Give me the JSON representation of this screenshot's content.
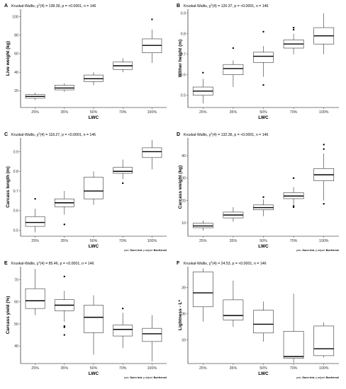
{
  "pwc_note": {
    "prefix": "pwc: ",
    "test": "Dunn test",
    "mid": "; p.adjust: ",
    "method": "Bonferroni"
  },
  "chart_data": [
    {
      "type": "boxplot",
      "panel": "A",
      "stat_prefix": "Kruskal-Wallis, χ",
      "stat_sup": "2",
      "stat_rest": "(4) = 138.39, p = <0.0001, n = 146",
      "xlabel": "LWC",
      "ylabel": "Live weight (kg)",
      "categories": [
        "25%",
        "35%",
        "50%",
        "70%",
        "100%"
      ],
      "ylim": [
        2,
        108
      ],
      "yticks": [
        20,
        40,
        60,
        80,
        100
      ],
      "show_pwc": false,
      "boxes": [
        {
          "whislo": 10,
          "q1": 12,
          "med": 14,
          "q3": 16,
          "whishi": 18,
          "outliers": []
        },
        {
          "whislo": 19,
          "q1": 21,
          "med": 23,
          "q3": 26,
          "whishi": 28,
          "outliers": []
        },
        {
          "whislo": 26,
          "q1": 30,
          "med": 33,
          "q3": 37,
          "whishi": 40,
          "outliers": []
        },
        {
          "whislo": 40,
          "q1": 43,
          "med": 47,
          "q3": 51,
          "whishi": 55,
          "outliers": []
        },
        {
          "whislo": 50,
          "q1": 61,
          "med": 69,
          "q3": 76,
          "whishi": 86,
          "outliers": [
            97
          ]
        }
      ]
    },
    {
      "type": "boxplot",
      "panel": "B",
      "stat_prefix": "Kruskal-Wallis, χ",
      "stat_sup": "2",
      "stat_rest": "(4) = 120.37, p = <0.0001, n = 146",
      "xlabel": "LWC",
      "ylabel": "Wither height (m)",
      "categories": [
        "25%",
        "35%",
        "50%",
        "70%",
        "100%"
      ],
      "ylim": [
        0.44,
        0.92
      ],
      "yticks": [
        0.5,
        0.6,
        0.7,
        0.8,
        0.9
      ],
      "show_pwc": false,
      "boxes": [
        {
          "whislo": 0.46,
          "q1": 0.5,
          "med": 0.52,
          "q3": 0.54,
          "whishi": 0.58,
          "outliers": [
            0.61
          ]
        },
        {
          "whislo": 0.54,
          "q1": 0.6,
          "med": 0.63,
          "q3": 0.65,
          "whishi": 0.67,
          "outliers": [
            0.73
          ]
        },
        {
          "whislo": 0.59,
          "q1": 0.66,
          "med": 0.69,
          "q3": 0.71,
          "whishi": 0.74,
          "outliers": [
            0.81,
            0.55
          ]
        },
        {
          "whislo": 0.7,
          "q1": 0.73,
          "med": 0.75,
          "q3": 0.77,
          "whishi": 0.8,
          "outliers": [
            0.82,
            0.83
          ]
        },
        {
          "whislo": 0.7,
          "q1": 0.75,
          "med": 0.79,
          "q3": 0.83,
          "whishi": 0.9,
          "outliers": []
        }
      ]
    },
    {
      "type": "boxplot",
      "panel": "C",
      "stat_prefix": "Kruskal-Wallis, χ",
      "stat_sup": "2",
      "stat_rest": "(4) = 118.27, p = <0.0001, n = 146",
      "xlabel": "LWC",
      "ylabel": "Carcass length (m)",
      "categories": [
        "25%",
        "35%",
        "50%",
        "70%",
        "100%"
      ],
      "ylim": [
        0.47,
        0.97
      ],
      "yticks": [
        0.5,
        0.6,
        0.7,
        0.8,
        0.9
      ],
      "show_pwc": true,
      "boxes": [
        {
          "whislo": 0.49,
          "q1": 0.52,
          "med": 0.54,
          "q3": 0.57,
          "whishi": 0.61,
          "outliers": [
            0.66
          ]
        },
        {
          "whislo": 0.58,
          "q1": 0.62,
          "med": 0.64,
          "q3": 0.66,
          "whishi": 0.7,
          "outliers": [
            0.53
          ]
        },
        {
          "whislo": 0.63,
          "q1": 0.66,
          "med": 0.7,
          "q3": 0.77,
          "whishi": 0.8,
          "outliers": []
        },
        {
          "whislo": 0.76,
          "q1": 0.79,
          "med": 0.8,
          "q3": 0.82,
          "whishi": 0.86,
          "outliers": [
            0.74
          ]
        },
        {
          "whislo": 0.81,
          "q1": 0.87,
          "med": 0.9,
          "q3": 0.92,
          "whishi": 0.96,
          "outliers": []
        }
      ]
    },
    {
      "type": "boxplot",
      "panel": "D",
      "stat_prefix": "Kruskal-Wallis, χ",
      "stat_sup": "2",
      "stat_rest": "(4) = 132.36, p = <0.0001, n = 146",
      "xlabel": "LWC",
      "ylabel": "Carcass weight (kg)",
      "categories": [
        "25%",
        "35%",
        "50%",
        "70%",
        "100%"
      ],
      "ylim": [
        4,
        48
      ],
      "yticks": [
        10,
        20,
        30,
        40
      ],
      "show_pwc": true,
      "boxes": [
        {
          "whislo": 6.5,
          "q1": 7.8,
          "med": 8.6,
          "q3": 9.8,
          "whishi": 11,
          "outliers": []
        },
        {
          "whislo": 10.5,
          "q1": 12.2,
          "med": 13.5,
          "q3": 14.8,
          "whishi": 17,
          "outliers": []
        },
        {
          "whislo": 13,
          "q1": 15.8,
          "med": 16.8,
          "q3": 18,
          "whishi": 20.5,
          "outliers": [
            21.5
          ]
        },
        {
          "whislo": 18,
          "q1": 20.8,
          "med": 22,
          "q3": 23.5,
          "whishi": 26,
          "outliers": [
            30,
            17,
            17.5
          ]
        },
        {
          "whislo": 20,
          "q1": 28.8,
          "med": 31.5,
          "q3": 34.3,
          "whishi": 41,
          "outliers": [
            43,
            45,
            18.5
          ]
        }
      ]
    },
    {
      "type": "boxplot",
      "panel": "E",
      "stat_prefix": "Kruskal-Wallis, χ",
      "stat_sup": "2",
      "stat_rest": "(4) = 85.46, p = <0.0001, n = 146",
      "xlabel": "LWC",
      "ylabel": "Carcass yield (%)",
      "categories": [
        "25%",
        "35%",
        "50%",
        "70%",
        "100%"
      ],
      "ylim": [
        32,
        76
      ],
      "yticks": [
        40,
        50,
        60,
        70
      ],
      "show_pwc": true,
      "boxes": [
        {
          "whislo": 54,
          "q1": 57,
          "med": 60.5,
          "q3": 66,
          "whishi": 75,
          "outliers": []
        },
        {
          "whislo": 51,
          "q1": 56,
          "med": 58.5,
          "q3": 61,
          "whishi": 65,
          "outliers": [
            71.5,
            49,
            48.5,
            45
          ]
        },
        {
          "whislo": 36,
          "q1": 46,
          "med": 53,
          "q3": 58.5,
          "whishi": 63,
          "outliers": []
        },
        {
          "whislo": 39,
          "q1": 44.5,
          "med": 47.5,
          "q3": 49.5,
          "whishi": 55,
          "outliers": [
            57
          ]
        },
        {
          "whislo": 33,
          "q1": 42,
          "med": 45.5,
          "q3": 48,
          "whishi": 54,
          "outliers": []
        }
      ]
    },
    {
      "type": "boxplot",
      "panel": "F",
      "stat_prefix": "Kruskal-Wallis, χ",
      "stat_sup": "2",
      "stat_rest": "(4) = 24.53, p = <0.0001, n = 146",
      "xlabel": "LWC",
      "ylabel": "Lightness - L*",
      "categories": [
        "25%",
        "35%",
        "50%",
        "70%",
        "100%"
      ],
      "ylim": [
        30.3,
        41.4
      ],
      "yticks": [
        33,
        36,
        39
      ],
      "show_pwc": true,
      "boxes": [
        {
          "whislo": 35.1,
          "q1": 36.8,
          "med": 38.4,
          "q3": 40.8,
          "whishi": 41.2,
          "outliers": []
        },
        {
          "whislo": 34.5,
          "q1": 35.3,
          "med": 35.8,
          "q3": 37.6,
          "whishi": 39.8,
          "outliers": []
        },
        {
          "whislo": 32.8,
          "q1": 33.8,
          "med": 34.8,
          "q3": 36.4,
          "whishi": 37.4,
          "outliers": []
        },
        {
          "whislo": 30.4,
          "q1": 30.9,
          "med": 31.1,
          "q3": 34.0,
          "whishi": 38.3,
          "outliers": []
        },
        {
          "whislo": 31.0,
          "q1": 31.2,
          "med": 32.0,
          "q3": 34.6,
          "whishi": 35.0,
          "outliers": []
        }
      ]
    }
  ]
}
